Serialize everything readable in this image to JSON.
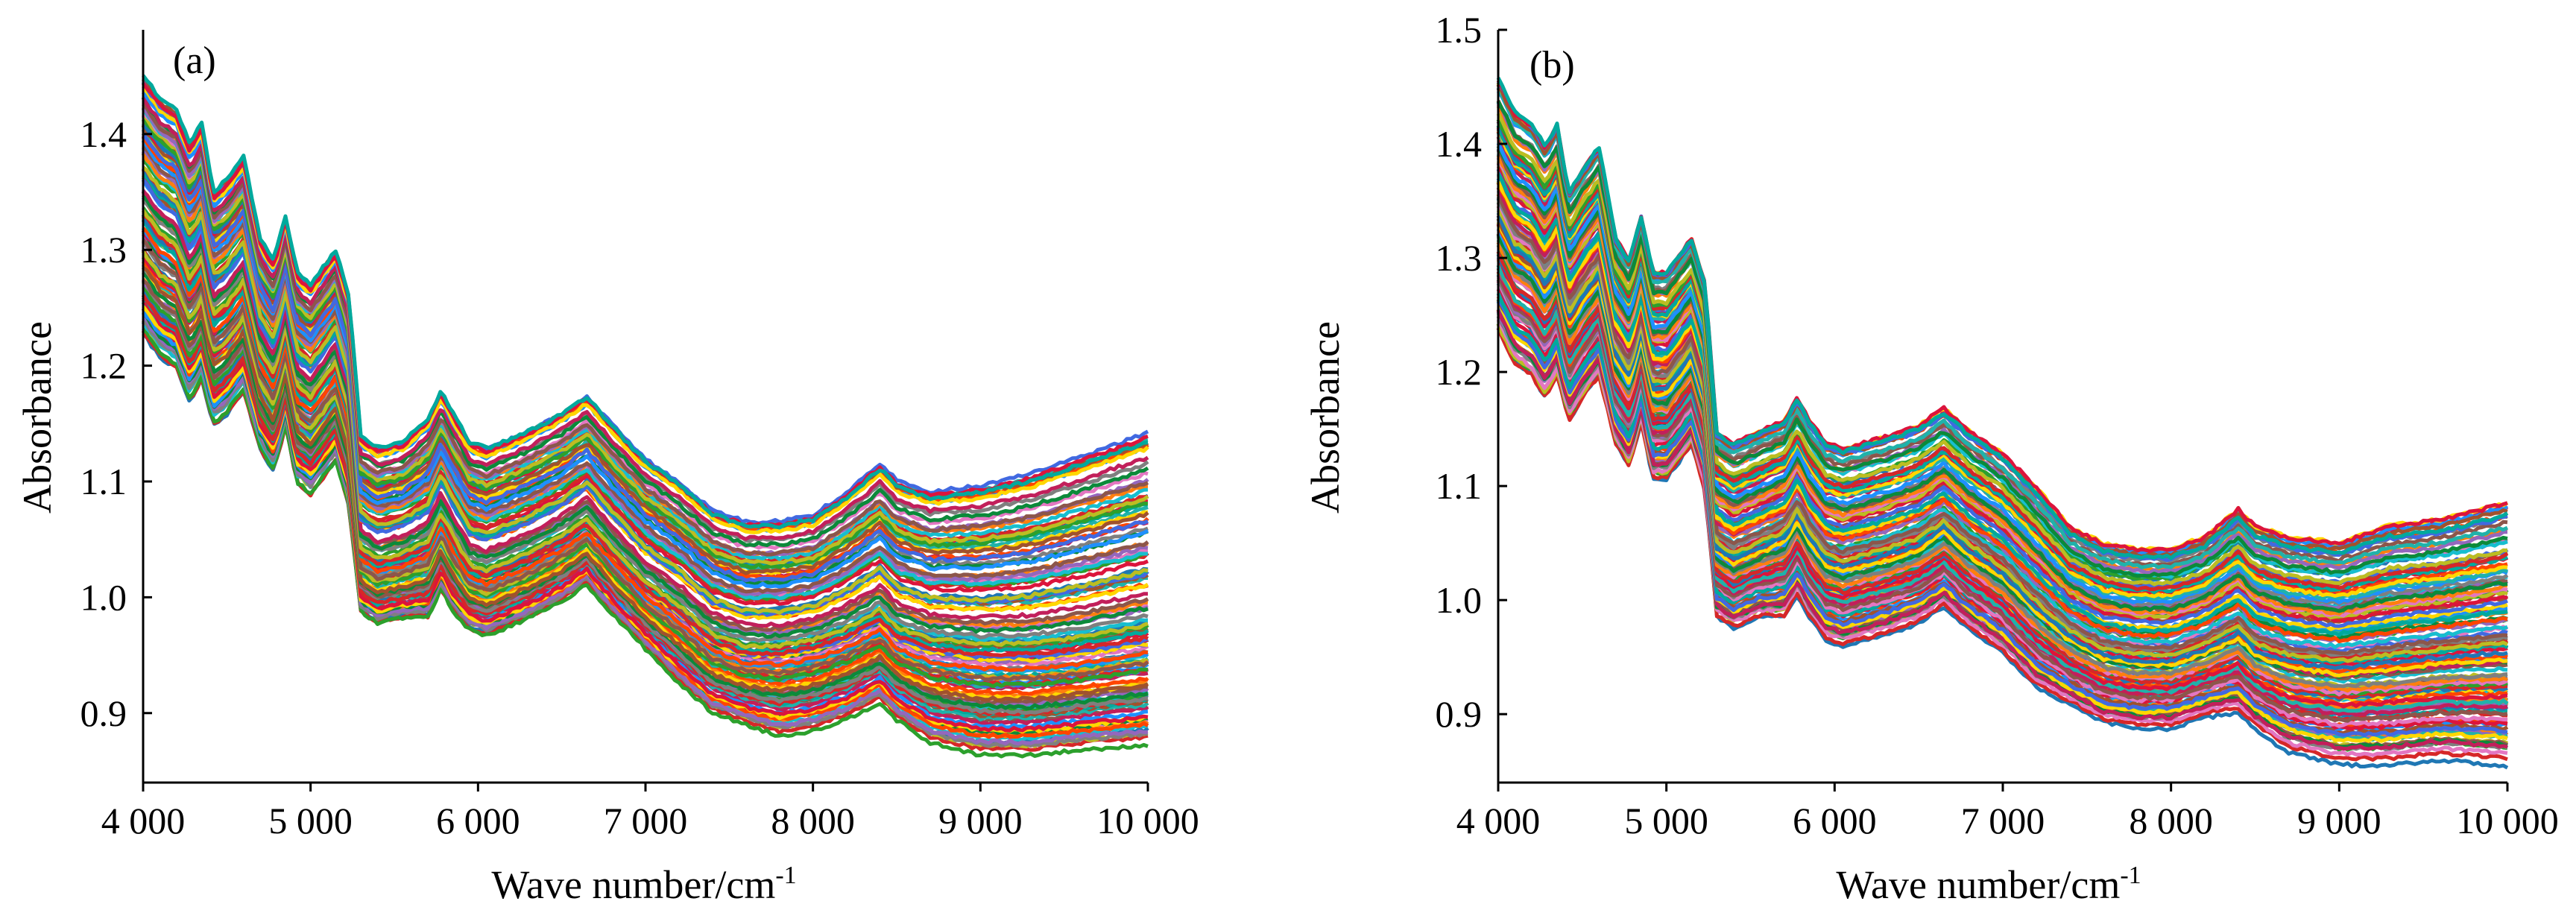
{
  "chart_data": [
    {
      "type": "line",
      "panel_label": "(a)",
      "xlabel": "Wave number/cm",
      "xlabel_sup": "-1",
      "ylabel": "Absorbance",
      "xlim": [
        4000,
        10000
      ],
      "ylim": [
        0.84,
        1.49
      ],
      "xticks": [
        4000,
        5000,
        6000,
        7000,
        8000,
        9000,
        10000
      ],
      "xtick_labels": [
        "4 000",
        "5 000",
        "6 000",
        "7 000",
        "8 000",
        "9 000",
        "10 000"
      ],
      "yticks": [
        0.9,
        1.0,
        1.1,
        1.2,
        1.3,
        1.4
      ],
      "ytick_labels": [
        "0.9",
        "1.0",
        "1.1",
        "1.2",
        "1.3",
        "1.4"
      ],
      "grid": false,
      "legend": "none",
      "spectra_count": 120,
      "profile_x": [
        4000,
        4100,
        4200,
        4280,
        4350,
        4420,
        4500,
        4600,
        4700,
        4780,
        4850,
        4920,
        5000,
        5150,
        5230,
        5300,
        5400,
        5550,
        5700,
        5780,
        5850,
        5950,
        6050,
        6300,
        6500,
        6650,
        6800,
        7000,
        7200,
        7400,
        7600,
        7800,
        8000,
        8200,
        8400,
        8500,
        8700,
        9000,
        9300,
        9600,
        10000
      ],
      "profile_mean": [
        1.33,
        1.31,
        1.3,
        1.27,
        1.29,
        1.24,
        1.25,
        1.27,
        1.21,
        1.19,
        1.23,
        1.18,
        1.17,
        1.2,
        1.16,
        1.04,
        1.03,
        1.035,
        1.045,
        1.07,
        1.05,
        1.025,
        1.02,
        1.035,
        1.05,
        1.065,
        1.04,
        1.01,
        0.99,
        0.965,
        0.955,
        0.955,
        0.96,
        0.97,
        0.985,
        0.97,
        0.96,
        0.955,
        0.955,
        0.96,
        0.97
      ],
      "profile_spread_low": [
        0.1,
        0.1,
        0.1,
        0.1,
        0.1,
        0.09,
        0.09,
        0.09,
        0.08,
        0.08,
        0.08,
        0.08,
        0.08,
        0.08,
        0.08,
        0.05,
        0.05,
        0.05,
        0.06,
        0.06,
        0.06,
        0.05,
        0.05,
        0.05,
        0.05,
        0.05,
        0.05,
        0.05,
        0.06,
        0.06,
        0.06,
        0.07,
        0.07,
        0.07,
        0.07,
        0.07,
        0.08,
        0.085,
        0.085,
        0.085,
        0.09
      ],
      "profile_spread_high": [
        0.12,
        0.12,
        0.12,
        0.12,
        0.12,
        0.11,
        0.11,
        0.11,
        0.1,
        0.1,
        0.1,
        0.1,
        0.1,
        0.1,
        0.1,
        0.1,
        0.1,
        0.1,
        0.11,
        0.11,
        0.11,
        0.11,
        0.11,
        0.11,
        0.11,
        0.11,
        0.11,
        0.11,
        0.11,
        0.11,
        0.11,
        0.11,
        0.11,
        0.12,
        0.13,
        0.13,
        0.13,
        0.14,
        0.15,
        0.16,
        0.17
      ],
      "line_colors": [
        "#1f77b4",
        "#d62728",
        "#2ca02c",
        "#bcbd22",
        "#e377c2",
        "#17becf",
        "#ff7f0e",
        "#7f7f7f",
        "#9467bd",
        "#8c564b",
        "#0b8a3a",
        "#c21f5b",
        "#1e90ff",
        "#ff4500",
        "#20b2aa",
        "#ffd700",
        "#a0522d",
        "#4169e1",
        "#dc143c",
        "#00a99d"
      ]
    },
    {
      "type": "line",
      "panel_label": "(b)",
      "xlabel": "Wave number/cm",
      "xlabel_sup": "-1",
      "ylabel": "Absorbance",
      "xlim": [
        4000,
        10000
      ],
      "ylim": [
        0.84,
        1.5
      ],
      "xticks": [
        4000,
        5000,
        6000,
        7000,
        8000,
        9000,
        10000
      ],
      "xtick_labels": [
        "4 000",
        "5 000",
        "6 000",
        "7 000",
        "8 000",
        "9 000",
        "10 000"
      ],
      "yticks": [
        0.9,
        1.0,
        1.1,
        1.2,
        1.3,
        1.4,
        1.5
      ],
      "ytick_labels": [
        "0.9",
        "1.0",
        "1.1",
        "1.2",
        "1.3",
        "1.4",
        "1.5"
      ],
      "grid": false,
      "legend": "none",
      "spectra_count": 120,
      "profile_x": [
        4000,
        4100,
        4200,
        4280,
        4350,
        4420,
        4500,
        4600,
        4700,
        4780,
        4850,
        4920,
        5000,
        5150,
        5230,
        5300,
        5400,
        5550,
        5700,
        5780,
        5850,
        5950,
        6050,
        6300,
        6500,
        6650,
        6800,
        7000,
        7200,
        7400,
        7600,
        7800,
        8000,
        8200,
        8400,
        8500,
        8700,
        9000,
        9300,
        9600,
        10000
      ],
      "profile_mean": [
        1.34,
        1.31,
        1.3,
        1.28,
        1.3,
        1.25,
        1.27,
        1.29,
        1.22,
        1.2,
        1.24,
        1.19,
        1.19,
        1.22,
        1.18,
        1.05,
        1.04,
        1.05,
        1.06,
        1.08,
        1.06,
        1.04,
        1.035,
        1.045,
        1.055,
        1.07,
        1.05,
        1.03,
        1.0,
        0.975,
        0.96,
        0.955,
        0.955,
        0.965,
        0.98,
        0.965,
        0.955,
        0.95,
        0.955,
        0.96,
        0.965
      ],
      "profile_spread_low": [
        0.1,
        0.1,
        0.1,
        0.1,
        0.1,
        0.09,
        0.09,
        0.09,
        0.08,
        0.08,
        0.08,
        0.08,
        0.08,
        0.08,
        0.08,
        0.06,
        0.06,
        0.06,
        0.07,
        0.07,
        0.07,
        0.07,
        0.07,
        0.07,
        0.07,
        0.07,
        0.07,
        0.07,
        0.07,
        0.06,
        0.06,
        0.06,
        0.06,
        0.06,
        0.07,
        0.07,
        0.08,
        0.085,
        0.09,
        0.09,
        0.1
      ],
      "profile_spread_high": [
        0.12,
        0.12,
        0.12,
        0.12,
        0.12,
        0.11,
        0.11,
        0.11,
        0.1,
        0.1,
        0.1,
        0.1,
        0.1,
        0.1,
        0.1,
        0.1,
        0.1,
        0.1,
        0.1,
        0.1,
        0.1,
        0.1,
        0.1,
        0.1,
        0.1,
        0.1,
        0.1,
        0.1,
        0.1,
        0.09,
        0.09,
        0.09,
        0.09,
        0.09,
        0.1,
        0.1,
        0.1,
        0.1,
        0.11,
        0.11,
        0.12
      ],
      "line_colors": [
        "#1f77b4",
        "#d62728",
        "#2ca02c",
        "#bcbd22",
        "#e377c2",
        "#17becf",
        "#ff7f0e",
        "#7f7f7f",
        "#9467bd",
        "#8c564b",
        "#0b8a3a",
        "#c21f5b",
        "#1e90ff",
        "#ff4500",
        "#20b2aa",
        "#ffd700",
        "#a0522d",
        "#4169e1",
        "#dc143c",
        "#00a99d"
      ]
    }
  ]
}
